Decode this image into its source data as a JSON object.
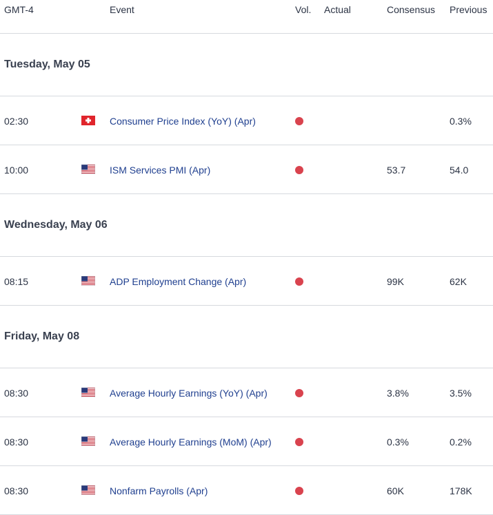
{
  "header": {
    "timezone": "GMT-4",
    "event": "Event",
    "vol": "Vol.",
    "actual": "Actual",
    "consensus": "Consensus",
    "previous": "Previous"
  },
  "colors": {
    "high_volatility": "#d9434e",
    "event_text": "#1f3f8f"
  },
  "days": [
    {
      "label": "Tuesday, May 05",
      "events": [
        {
          "time": "02:30",
          "flag": "switzerland-flag-icon",
          "name": "Consumer Price Index (YoY) (Apr)",
          "actual": "",
          "consensus": "",
          "previous": "0.3%"
        },
        {
          "time": "10:00",
          "flag": "us-flag-icon",
          "name": "ISM Services PMI (Apr)",
          "actual": "",
          "consensus": "53.7",
          "previous": "54.0"
        }
      ]
    },
    {
      "label": "Wednesday, May 06",
      "events": [
        {
          "time": "08:15",
          "flag": "us-flag-icon",
          "name": "ADP Employment Change (Apr)",
          "actual": "",
          "consensus": "99K",
          "previous": "62K"
        }
      ]
    },
    {
      "label": "Friday, May 08",
      "events": [
        {
          "time": "08:30",
          "flag": "us-flag-icon",
          "name": "Average Hourly Earnings (YoY) (Apr)",
          "actual": "",
          "consensus": "3.8%",
          "previous": "3.5%"
        },
        {
          "time": "08:30",
          "flag": "us-flag-icon",
          "name": "Average Hourly Earnings (MoM) (Apr)",
          "actual": "",
          "consensus": "0.3%",
          "previous": "0.2%"
        },
        {
          "time": "08:30",
          "flag": "us-flag-icon",
          "name": "Nonfarm Payrolls (Apr)",
          "actual": "",
          "consensus": "60K",
          "previous": "178K"
        }
      ]
    }
  ]
}
